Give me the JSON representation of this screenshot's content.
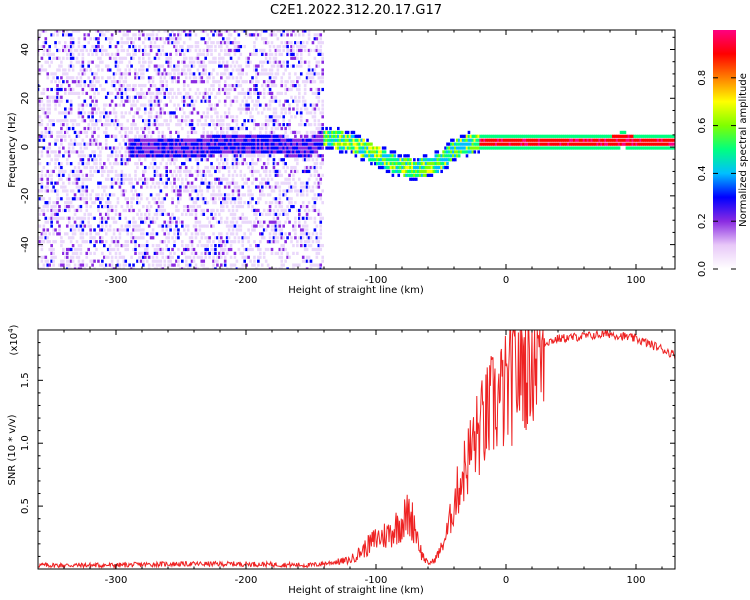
{
  "figure": {
    "title": "C2E1.2022.312.20.17.G17"
  },
  "chart_data": [
    {
      "type": "heatmap",
      "title": "C2E1.2022.312.20.17.G17",
      "xlabel": "Height of straight line (km)",
      "ylabel": "Frequency (Hz)",
      "xlim": [
        -360,
        130
      ],
      "ylim": [
        -50,
        48
      ],
      "x_ticks": [
        -300,
        -200,
        -100,
        0,
        100
      ],
      "x_tick_labels": [
        "-300",
        "-200",
        "-100",
        "0",
        "100"
      ],
      "y_ticks": [
        -40,
        -20,
        0,
        20,
        40
      ],
      "y_tick_labels": [
        "-40",
        "-20",
        "0",
        "20",
        "40"
      ],
      "colorbar": {
        "label": "Normalized spectral amplitude",
        "range": [
          0,
          1
        ],
        "ticks": [
          0.0,
          0.2,
          0.4,
          0.6,
          0.8
        ],
        "tick_labels": [
          "0.0",
          "0.2",
          "0.4",
          "0.6",
          "0.8"
        ],
        "colors": [
          "#ffffff",
          "#e8c8f8",
          "#8a2be2",
          "#0000ff",
          "#00bfff",
          "#00ff80",
          "#7fff00",
          "#ffff00",
          "#ff8000",
          "#ff0000",
          "#ff0080"
        ]
      },
      "signal_track": {
        "x": [
          -290,
          -250,
          -200,
          -150,
          -140,
          -120,
          -100,
          -90,
          -80,
          -70,
          -60,
          -50,
          -40,
          -30,
          -20,
          -10,
          0,
          20,
          40,
          60,
          80,
          90,
          100,
          130
        ],
        "frequency": [
          0,
          0,
          1,
          0,
          4,
          2,
          -3,
          -6,
          -8,
          -9,
          -8,
          -6,
          -1,
          1,
          2,
          2,
          2,
          2,
          2,
          2,
          2,
          3,
          2,
          2
        ]
      }
    },
    {
      "type": "line",
      "xlabel": "Height of straight line (km)",
      "ylabel": "SNR (10 * v/v)",
      "y_multiplier": "(x10",
      "y_multiplier_exponent": "4",
      "y_multiplier_close": ")",
      "xlim": [
        -360,
        130
      ],
      "ylim": [
        0,
        19000
      ],
      "x_ticks": [
        -300,
        -200,
        -100,
        0,
        100
      ],
      "x_tick_labels": [
        "-300",
        "-200",
        "-100",
        "0",
        "100"
      ],
      "y_ticks": [
        5000,
        10000,
        15000
      ],
      "y_tick_labels": [
        "0.5",
        "1.0",
        "1.5"
      ],
      "line_color": "#ee2222",
      "series": [
        {
          "x": [
            -360,
            -300,
            -260,
            -200,
            -150,
            -120,
            -110,
            -100,
            -90,
            -80,
            -75,
            -70,
            -65,
            -60,
            -55,
            -50,
            -45,
            -40,
            -35,
            -30,
            -25,
            -20,
            -15,
            -10,
            -5,
            0,
            10,
            20,
            30,
            40,
            60,
            80,
            100,
            120,
            130
          ],
          "values": [
            300,
            300,
            400,
            400,
            300,
            700,
            1500,
            2400,
            2800,
            3800,
            4300,
            3500,
            1200,
            400,
            700,
            1600,
            3000,
            5200,
            7000,
            8500,
            10000,
            11000,
            12000,
            13000,
            13500,
            14000,
            16000,
            17500,
            18000,
            18300,
            18500,
            18700,
            18300,
            17500,
            17000
          ]
        }
      ]
    }
  ]
}
